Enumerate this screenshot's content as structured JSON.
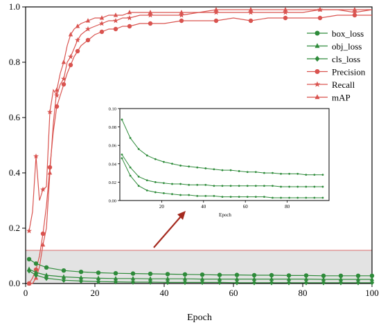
{
  "chart_data": [
    {
      "type": "line",
      "title": "",
      "xlabel": "Epoch",
      "ylabel": "",
      "xlim": [
        0,
        100
      ],
      "ylim": [
        0,
        1.0
      ],
      "x_ticks": [
        0,
        20,
        40,
        60,
        80,
        100
      ],
      "y_ticks": [
        0.0,
        0.2,
        0.4,
        0.6,
        0.8,
        1.0
      ],
      "grid": false,
      "legend_position": "top-right",
      "highlight_region": {
        "y_range": [
          0,
          0.12
        ],
        "fill": "#e3e3e3",
        "stroke": "#d96a6a"
      },
      "x": [
        1,
        3,
        6,
        11,
        16,
        21,
        26,
        31,
        36,
        41,
        46,
        51,
        56,
        61,
        66,
        71,
        76,
        81,
        86,
        91,
        96,
        100
      ],
      "series": [
        {
          "name": "box_loss",
          "color": "#2e8b3a",
          "marker": "circle",
          "values": [
            0.088,
            0.072,
            0.058,
            0.047,
            0.042,
            0.039,
            0.037,
            0.036,
            0.035,
            0.034,
            0.033,
            0.032,
            0.031,
            0.031,
            0.03,
            0.03,
            0.029,
            0.029,
            0.028,
            0.028,
            0.028,
            0.028
          ]
        },
        {
          "name": "obj_loss",
          "color": "#2e8b3a",
          "marker": "triangle",
          "values": [
            0.052,
            0.04,
            0.03,
            0.024,
            0.021,
            0.019,
            0.018,
            0.018,
            0.017,
            0.017,
            0.017,
            0.016,
            0.016,
            0.016,
            0.016,
            0.016,
            0.016,
            0.016,
            0.015,
            0.015,
            0.015,
            0.015
          ]
        },
        {
          "name": "cls_loss",
          "color": "#2e8b3a",
          "marker": "diamond",
          "values": [
            0.046,
            0.03,
            0.019,
            0.012,
            0.009,
            0.007,
            0.006,
            0.005,
            0.005,
            0.004,
            0.004,
            0.004,
            0.004,
            0.003,
            0.003,
            0.003,
            0.003,
            0.003,
            0.003,
            0.003,
            0.003,
            0.003
          ]
        }
      ],
      "metric_x": [
        1,
        2,
        3,
        4,
        5,
        6,
        7,
        8,
        9,
        10,
        11,
        12,
        13,
        14,
        15,
        16,
        18,
        20,
        22,
        24,
        26,
        28,
        30,
        33,
        36,
        40,
        45,
        50,
        55,
        60,
        65,
        70,
        75,
        80,
        85,
        90,
        95,
        100
      ],
      "metric_series": [
        {
          "name": "Precision",
          "color": "#d9534f",
          "marker": "circle",
          "values": [
            0.0,
            0.02,
            0.05,
            0.1,
            0.18,
            0.28,
            0.42,
            0.55,
            0.64,
            0.68,
            0.72,
            0.76,
            0.79,
            0.82,
            0.84,
            0.86,
            0.88,
            0.9,
            0.91,
            0.92,
            0.92,
            0.93,
            0.93,
            0.94,
            0.94,
            0.94,
            0.95,
            0.95,
            0.95,
            0.96,
            0.95,
            0.96,
            0.96,
            0.96,
            0.96,
            0.97,
            0.97,
            0.97
          ]
        },
        {
          "name": "Recall",
          "color": "#d9534f",
          "marker": "star",
          "values": [
            0.19,
            0.26,
            0.46,
            0.3,
            0.34,
            0.35,
            0.62,
            0.7,
            0.68,
            0.72,
            0.74,
            0.8,
            0.82,
            0.85,
            0.88,
            0.9,
            0.92,
            0.93,
            0.94,
            0.95,
            0.95,
            0.96,
            0.96,
            0.97,
            0.97,
            0.97,
            0.97,
            0.98,
            0.98,
            0.98,
            0.98,
            0.98,
            0.98,
            0.98,
            0.99,
            0.99,
            0.98,
            0.99
          ]
        },
        {
          "name": "mAP",
          "color": "#d9534f",
          "marker": "triangle",
          "values": [
            0.0,
            0.0,
            0.02,
            0.06,
            0.14,
            0.2,
            0.4,
            0.58,
            0.7,
            0.76,
            0.8,
            0.86,
            0.9,
            0.92,
            0.93,
            0.94,
            0.95,
            0.96,
            0.96,
            0.97,
            0.97,
            0.97,
            0.98,
            0.98,
            0.98,
            0.98,
            0.98,
            0.98,
            0.99,
            0.99,
            0.99,
            0.99,
            0.99,
            0.99,
            0.99,
            0.99,
            0.99,
            0.99
          ]
        }
      ]
    },
    {
      "type": "line",
      "title": "",
      "xlabel": "Epoch",
      "ylabel": "",
      "xlim": [
        0,
        100
      ],
      "ylim": [
        0,
        0.1
      ],
      "x_ticks": [
        20,
        40,
        60,
        80
      ],
      "y_ticks": [
        0.0,
        0.02,
        0.04,
        0.06,
        0.08,
        0.1
      ],
      "y_tick_labels": [
        "0.00",
        "0.02",
        "0.04",
        "0.06",
        "0.08",
        "0.10"
      ],
      "grid": false,
      "inset": true,
      "x": [
        1,
        5,
        9,
        13,
        17,
        21,
        25,
        29,
        33,
        37,
        41,
        45,
        49,
        53,
        57,
        61,
        65,
        69,
        73,
        77,
        81,
        85,
        89,
        93,
        97
      ],
      "series": [
        {
          "name": "box_loss",
          "color": "#2e8b3a",
          "values": [
            0.088,
            0.068,
            0.056,
            0.049,
            0.045,
            0.042,
            0.04,
            0.038,
            0.037,
            0.036,
            0.035,
            0.034,
            0.033,
            0.033,
            0.032,
            0.031,
            0.031,
            0.03,
            0.03,
            0.029,
            0.029,
            0.029,
            0.028,
            0.028,
            0.028
          ]
        },
        {
          "name": "obj_loss",
          "color": "#2e8b3a",
          "values": [
            0.05,
            0.036,
            0.026,
            0.022,
            0.02,
            0.019,
            0.018,
            0.018,
            0.017,
            0.017,
            0.017,
            0.016,
            0.016,
            0.016,
            0.016,
            0.016,
            0.016,
            0.016,
            0.016,
            0.015,
            0.015,
            0.015,
            0.015,
            0.015,
            0.015
          ]
        },
        {
          "name": "cls_loss",
          "color": "#2e8b3a",
          "values": [
            0.046,
            0.027,
            0.016,
            0.011,
            0.009,
            0.008,
            0.007,
            0.006,
            0.006,
            0.005,
            0.005,
            0.005,
            0.004,
            0.004,
            0.004,
            0.004,
            0.004,
            0.004,
            0.003,
            0.003,
            0.003,
            0.003,
            0.003,
            0.003,
            0.003
          ]
        }
      ]
    }
  ]
}
